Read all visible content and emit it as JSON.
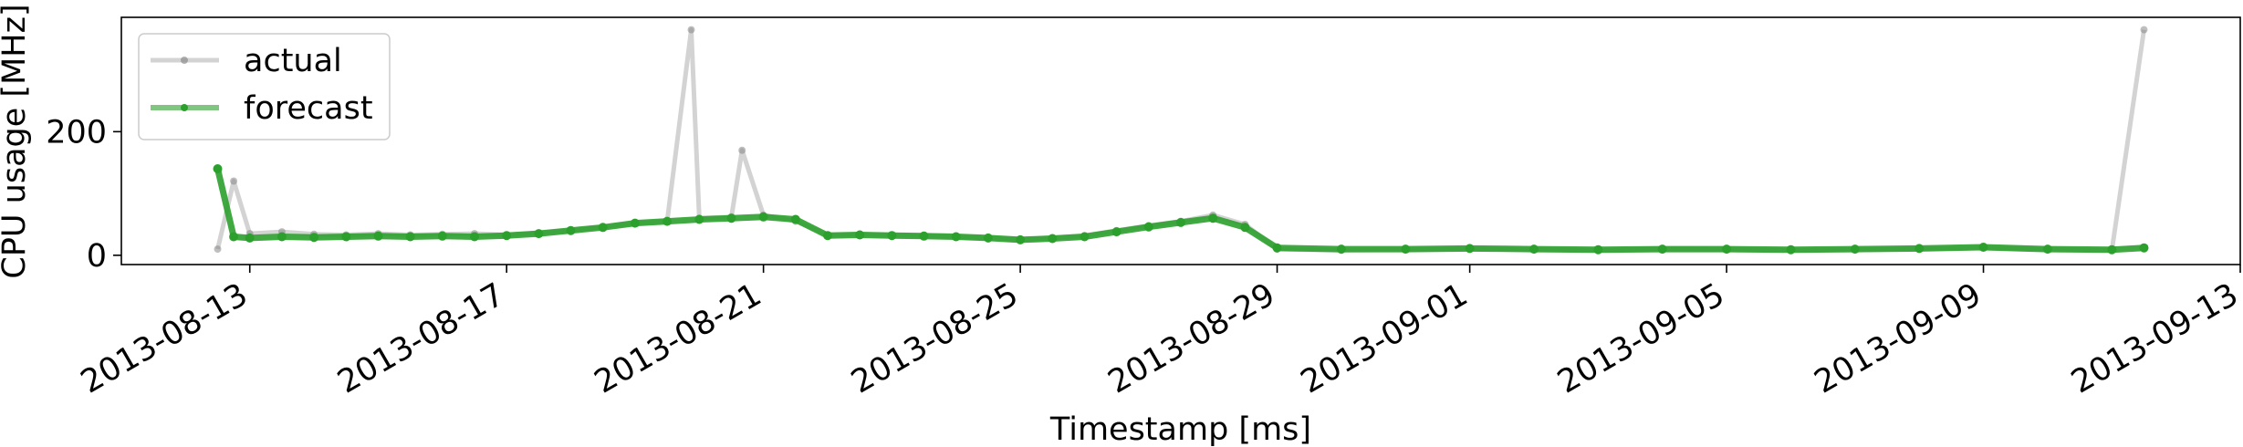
{
  "chart_data": {
    "type": "line",
    "xlabel": "Timestamp [ms]",
    "ylabel": "CPU usage [MHz]",
    "xlim": [
      "2013-08-11",
      "2013-09-13"
    ],
    "ylim": [
      -15,
      385
    ],
    "grid": false,
    "legend_position": "top-left",
    "x_ticks": [
      "2013-08-13",
      "2013-08-17",
      "2013-08-21",
      "2013-08-25",
      "2013-08-29",
      "2013-09-01",
      "2013-09-05",
      "2013-09-09",
      "2013-09-13"
    ],
    "y_ticks": [
      0,
      200
    ],
    "series": [
      {
        "name": "actual",
        "color": "#808080",
        "x": [
          "2013-08-12 12:00",
          "2013-08-12 18:00",
          "2013-08-13 00:00",
          "2013-08-13 12:00",
          "2013-08-14 00:00",
          "2013-08-14 12:00",
          "2013-08-15 00:00",
          "2013-08-15 12:00",
          "2013-08-16 00:00",
          "2013-08-16 12:00",
          "2013-08-17 00:00",
          "2013-08-17 12:00",
          "2013-08-18 00:00",
          "2013-08-18 12:00",
          "2013-08-19 00:00",
          "2013-08-19 12:00",
          "2013-08-19 21:00",
          "2013-08-20 00:00",
          "2013-08-20 12:00",
          "2013-08-20 16:00",
          "2013-08-21 00:00",
          "2013-08-21 12:00",
          "2013-08-22 00:00",
          "2013-08-22 12:00",
          "2013-08-23 00:00",
          "2013-08-23 12:00",
          "2013-08-24 00:00",
          "2013-08-24 12:00",
          "2013-08-25 00:00",
          "2013-08-25 12:00",
          "2013-08-26 00:00",
          "2013-08-26 12:00",
          "2013-08-27 00:00",
          "2013-08-27 12:00",
          "2013-08-28 00:00",
          "2013-08-28 12:00",
          "2013-08-29 00:00",
          "2013-08-30 00:00",
          "2013-08-31 00:00",
          "2013-09-01 00:00",
          "2013-09-02 00:00",
          "2013-09-03 00:00",
          "2013-09-04 00:00",
          "2013-09-05 00:00",
          "2013-09-06 00:00",
          "2013-09-07 00:00",
          "2013-09-08 00:00",
          "2013-09-09 00:00",
          "2013-09-10 00:00",
          "2013-09-11 00:00",
          "2013-09-11 12:00"
        ],
        "y": [
          10,
          120,
          35,
          38,
          34,
          33,
          35,
          33,
          34,
          35,
          33,
          36,
          40,
          46,
          52,
          55,
          365,
          60,
          62,
          170,
          65,
          55,
          33,
          34,
          33,
          32,
          30,
          28,
          25,
          28,
          32,
          40,
          48,
          55,
          65,
          50,
          10,
          8,
          9,
          10,
          9,
          8,
          10,
          9,
          8,
          9,
          10,
          12,
          9,
          8,
          365
        ]
      },
      {
        "name": "forecast",
        "color": "#2ca02c",
        "x": [
          "2013-08-12 12:00",
          "2013-08-12 18:00",
          "2013-08-13 00:00",
          "2013-08-13 12:00",
          "2013-08-14 00:00",
          "2013-08-14 12:00",
          "2013-08-15 00:00",
          "2013-08-15 12:00",
          "2013-08-16 00:00",
          "2013-08-16 12:00",
          "2013-08-17 00:00",
          "2013-08-17 12:00",
          "2013-08-18 00:00",
          "2013-08-18 12:00",
          "2013-08-19 00:00",
          "2013-08-19 12:00",
          "2013-08-20 00:00",
          "2013-08-20 12:00",
          "2013-08-21 00:00",
          "2013-08-21 12:00",
          "2013-08-22 00:00",
          "2013-08-22 12:00",
          "2013-08-23 00:00",
          "2013-08-23 12:00",
          "2013-08-24 00:00",
          "2013-08-24 12:00",
          "2013-08-25 00:00",
          "2013-08-25 12:00",
          "2013-08-26 00:00",
          "2013-08-26 12:00",
          "2013-08-27 00:00",
          "2013-08-27 12:00",
          "2013-08-28 00:00",
          "2013-08-28 12:00",
          "2013-08-29 00:00",
          "2013-08-30 00:00",
          "2013-08-31 00:00",
          "2013-09-01 00:00",
          "2013-09-02 00:00",
          "2013-09-03 00:00",
          "2013-09-04 00:00",
          "2013-09-05 00:00",
          "2013-09-06 00:00",
          "2013-09-07 00:00",
          "2013-09-08 00:00",
          "2013-09-09 00:00",
          "2013-09-10 00:00",
          "2013-09-11 00:00",
          "2013-09-11 12:00"
        ],
        "y": [
          140,
          30,
          28,
          30,
          29,
          30,
          31,
          30,
          31,
          30,
          32,
          35,
          40,
          45,
          52,
          55,
          58,
          60,
          62,
          58,
          32,
          33,
          32,
          31,
          30,
          28,
          25,
          27,
          30,
          38,
          46,
          53,
          60,
          45,
          12,
          10,
          10,
          11,
          10,
          9,
          10,
          10,
          9,
          10,
          11,
          13,
          10,
          9,
          12
        ]
      }
    ]
  }
}
